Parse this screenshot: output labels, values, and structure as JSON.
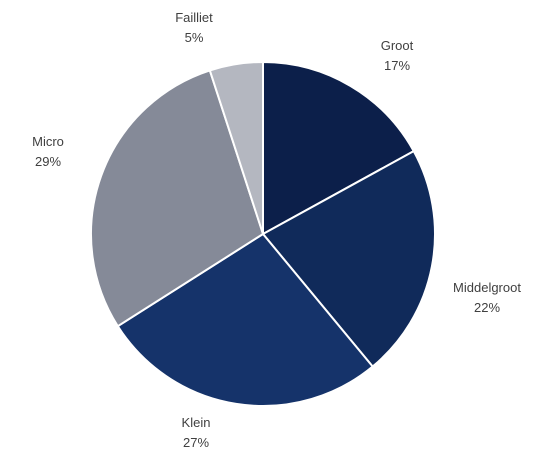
{
  "chart_data": {
    "type": "pie",
    "title": "",
    "categories": [
      "Groot",
      "Middelgroot",
      "Klein",
      "Micro",
      "Failliet"
    ],
    "values": [
      17,
      22,
      27,
      29,
      5
    ],
    "value_labels": [
      "17%",
      "22%",
      "27%",
      "29%",
      "5%"
    ],
    "colors": [
      "#0c1f4a",
      "#102a5a",
      "#15336a",
      "#858a98",
      "#b4b7c0"
    ],
    "start_angle_deg": 0,
    "direction": "clockwise",
    "legend": "none"
  }
}
